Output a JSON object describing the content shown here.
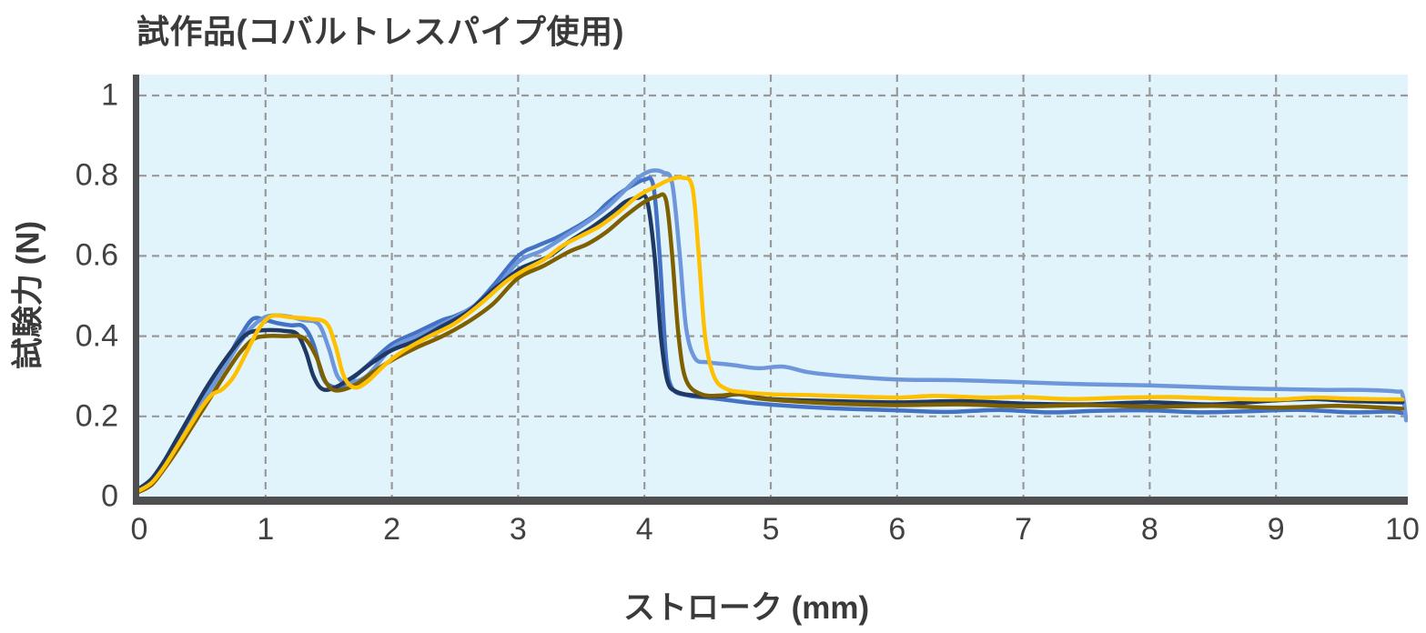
{
  "title": "試作品(コバルトレスパイプ使用)",
  "axes": {
    "y_label": "試験力 (N)",
    "x_label": "ストローク (mm)",
    "x_ticks": [
      {
        "value": 0,
        "label": "0"
      },
      {
        "value": 1,
        "label": "1"
      },
      {
        "value": 2,
        "label": "2"
      },
      {
        "value": 3,
        "label": "3"
      },
      {
        "value": 4,
        "label": "4"
      },
      {
        "value": 5,
        "label": "5"
      },
      {
        "value": 6,
        "label": "6"
      },
      {
        "value": 7,
        "label": "7"
      },
      {
        "value": 8,
        "label": "8"
      },
      {
        "value": 9,
        "label": "9"
      },
      {
        "value": 10,
        "label": "10"
      }
    ],
    "y_ticks": [
      {
        "value": 0,
        "label": "0"
      },
      {
        "value": 0.2,
        "label": "0.2"
      },
      {
        "value": 0.4,
        "label": "0.4"
      },
      {
        "value": 0.6,
        "label": "0.6"
      },
      {
        "value": 0.8,
        "label": "0.8"
      },
      {
        "value": 1,
        "label": "1"
      }
    ]
  },
  "style": {
    "plot_background": "#e2f4fb",
    "grid_color": "#999999",
    "axis_color": "#4f4f51",
    "text_color": "#3a3a3a"
  },
  "chart_data": {
    "type": "line",
    "title": "試作品(コバルトレスパイプ使用)",
    "xlabel": "ストローク (mm)",
    "ylabel": "試験力 (N)",
    "xlim": [
      0,
      10
    ],
    "ylim": [
      0,
      1.05
    ],
    "grid": "dashed-both-axes",
    "legend_position": "none",
    "description": "Five overlapping force-stroke test curves: rise to ~0.4-0.45 N plateau near 1 mm, dip to ~0.27 N at ~1.5 mm, rise to ~0.75-0.81 N peak near 4 mm, sharp drop to ~0.22-0.33 N, then flat tail to 10 mm",
    "series": [
      {
        "name": "run-medium-blue",
        "color": "#4472c4",
        "points": [
          [
            0,
            0.018
          ],
          [
            0.1,
            0.04
          ],
          [
            0.2,
            0.085
          ],
          [
            0.3,
            0.14
          ],
          [
            0.4,
            0.19
          ],
          [
            0.5,
            0.245
          ],
          [
            0.6,
            0.295
          ],
          [
            0.7,
            0.345
          ],
          [
            0.8,
            0.4
          ],
          [
            0.9,
            0.443
          ],
          [
            1.0,
            0.44
          ],
          [
            1.1,
            0.432
          ],
          [
            1.2,
            0.427
          ],
          [
            1.3,
            0.424
          ],
          [
            1.38,
            0.38
          ],
          [
            1.45,
            0.3
          ],
          [
            1.52,
            0.275
          ],
          [
            1.62,
            0.278
          ],
          [
            1.8,
            0.325
          ],
          [
            2.0,
            0.38
          ],
          [
            2.2,
            0.41
          ],
          [
            2.4,
            0.44
          ],
          [
            2.5,
            0.45
          ],
          [
            2.65,
            0.475
          ],
          [
            2.8,
            0.525
          ],
          [
            3.0,
            0.6
          ],
          [
            3.15,
            0.625
          ],
          [
            3.3,
            0.645
          ],
          [
            3.45,
            0.67
          ],
          [
            3.6,
            0.7
          ],
          [
            3.7,
            0.73
          ],
          [
            3.8,
            0.755
          ],
          [
            3.9,
            0.775
          ],
          [
            4.0,
            0.79
          ],
          [
            4.07,
            0.775
          ],
          [
            4.12,
            0.6
          ],
          [
            4.17,
            0.35
          ],
          [
            4.22,
            0.27
          ],
          [
            4.35,
            0.252
          ],
          [
            4.55,
            0.245
          ],
          [
            4.8,
            0.235
          ],
          [
            5.1,
            0.227
          ],
          [
            5.5,
            0.22
          ],
          [
            6.0,
            0.215
          ],
          [
            6.4,
            0.211
          ],
          [
            6.8,
            0.216
          ],
          [
            7.2,
            0.21
          ],
          [
            7.6,
            0.214
          ],
          [
            8.0,
            0.215
          ],
          [
            8.4,
            0.21
          ],
          [
            8.8,
            0.213
          ],
          [
            9.2,
            0.216
          ],
          [
            9.6,
            0.21
          ],
          [
            9.9,
            0.212
          ],
          [
            10,
            0.208
          ]
        ]
      },
      {
        "name": "run-light-blue",
        "color": "#6e96db",
        "points": [
          [
            0,
            0.015
          ],
          [
            0.1,
            0.035
          ],
          [
            0.2,
            0.075
          ],
          [
            0.3,
            0.125
          ],
          [
            0.4,
            0.18
          ],
          [
            0.5,
            0.235
          ],
          [
            0.6,
            0.285
          ],
          [
            0.7,
            0.335
          ],
          [
            0.8,
            0.385
          ],
          [
            0.9,
            0.425
          ],
          [
            1.0,
            0.448
          ],
          [
            1.1,
            0.452
          ],
          [
            1.2,
            0.448
          ],
          [
            1.3,
            0.44
          ],
          [
            1.42,
            0.43
          ],
          [
            1.5,
            0.37
          ],
          [
            1.57,
            0.3
          ],
          [
            1.65,
            0.285
          ],
          [
            1.8,
            0.3
          ],
          [
            2.0,
            0.37
          ],
          [
            2.2,
            0.4
          ],
          [
            2.4,
            0.43
          ],
          [
            2.6,
            0.465
          ],
          [
            2.8,
            0.51
          ],
          [
            3.0,
            0.585
          ],
          [
            3.2,
            0.615
          ],
          [
            3.4,
            0.655
          ],
          [
            3.55,
            0.685
          ],
          [
            3.7,
            0.72
          ],
          [
            3.85,
            0.765
          ],
          [
            3.95,
            0.795
          ],
          [
            4.05,
            0.812
          ],
          [
            4.15,
            0.808
          ],
          [
            4.22,
            0.78
          ],
          [
            4.28,
            0.6
          ],
          [
            4.33,
            0.42
          ],
          [
            4.4,
            0.345
          ],
          [
            4.5,
            0.335
          ],
          [
            4.7,
            0.328
          ],
          [
            4.9,
            0.32
          ],
          [
            5.1,
            0.324
          ],
          [
            5.3,
            0.31
          ],
          [
            5.6,
            0.3
          ],
          [
            6.0,
            0.292
          ],
          [
            6.5,
            0.29
          ],
          [
            7.0,
            0.285
          ],
          [
            7.5,
            0.28
          ],
          [
            8.0,
            0.277
          ],
          [
            8.5,
            0.272
          ],
          [
            9.0,
            0.268
          ],
          [
            9.4,
            0.266
          ],
          [
            9.7,
            0.266
          ],
          [
            9.95,
            0.262
          ],
          [
            10.0,
            0.255
          ],
          [
            10.03,
            0.19
          ]
        ]
      },
      {
        "name": "run-dark-navy",
        "color": "#1f3864",
        "points": [
          [
            0,
            0.02
          ],
          [
            0.1,
            0.045
          ],
          [
            0.2,
            0.09
          ],
          [
            0.3,
            0.145
          ],
          [
            0.4,
            0.2
          ],
          [
            0.5,
            0.255
          ],
          [
            0.6,
            0.305
          ],
          [
            0.7,
            0.35
          ],
          [
            0.8,
            0.39
          ],
          [
            0.88,
            0.41
          ],
          [
            1.0,
            0.415
          ],
          [
            1.15,
            0.413
          ],
          [
            1.25,
            0.405
          ],
          [
            1.32,
            0.36
          ],
          [
            1.38,
            0.3
          ],
          [
            1.45,
            0.268
          ],
          [
            1.55,
            0.272
          ],
          [
            1.7,
            0.3
          ],
          [
            1.85,
            0.335
          ],
          [
            2.0,
            0.365
          ],
          [
            2.2,
            0.39
          ],
          [
            2.4,
            0.425
          ],
          [
            2.6,
            0.46
          ],
          [
            2.8,
            0.515
          ],
          [
            3.0,
            0.565
          ],
          [
            3.1,
            0.58
          ],
          [
            3.25,
            0.6
          ],
          [
            3.4,
            0.635
          ],
          [
            3.5,
            0.655
          ],
          [
            3.6,
            0.675
          ],
          [
            3.75,
            0.71
          ],
          [
            3.85,
            0.735
          ],
          [
            3.95,
            0.745
          ],
          [
            4.02,
            0.738
          ],
          [
            4.08,
            0.6
          ],
          [
            4.13,
            0.4
          ],
          [
            4.18,
            0.29
          ],
          [
            4.25,
            0.262
          ],
          [
            4.4,
            0.252
          ],
          [
            4.6,
            0.25
          ],
          [
            4.75,
            0.255
          ],
          [
            5.0,
            0.243
          ],
          [
            5.5,
            0.238
          ],
          [
            6.0,
            0.235
          ],
          [
            6.5,
            0.238
          ],
          [
            7.0,
            0.232
          ],
          [
            7.5,
            0.23
          ],
          [
            8.0,
            0.235
          ],
          [
            8.5,
            0.23
          ],
          [
            9.0,
            0.24
          ],
          [
            9.3,
            0.243
          ],
          [
            9.6,
            0.238
          ],
          [
            10,
            0.235
          ]
        ]
      },
      {
        "name": "run-dark-olive",
        "color": "#7f6000",
        "points": [
          [
            0,
            0.012
          ],
          [
            0.1,
            0.03
          ],
          [
            0.2,
            0.07
          ],
          [
            0.3,
            0.115
          ],
          [
            0.4,
            0.165
          ],
          [
            0.5,
            0.215
          ],
          [
            0.6,
            0.265
          ],
          [
            0.7,
            0.315
          ],
          [
            0.8,
            0.36
          ],
          [
            0.9,
            0.392
          ],
          [
            1.0,
            0.4
          ],
          [
            1.15,
            0.4
          ],
          [
            1.3,
            0.396
          ],
          [
            1.4,
            0.35
          ],
          [
            1.47,
            0.29
          ],
          [
            1.55,
            0.265
          ],
          [
            1.7,
            0.277
          ],
          [
            1.85,
            0.31
          ],
          [
            2.0,
            0.34
          ],
          [
            2.2,
            0.372
          ],
          [
            2.4,
            0.4
          ],
          [
            2.6,
            0.435
          ],
          [
            2.8,
            0.48
          ],
          [
            3.0,
            0.545
          ],
          [
            3.2,
            0.575
          ],
          [
            3.4,
            0.61
          ],
          [
            3.55,
            0.63
          ],
          [
            3.7,
            0.66
          ],
          [
            3.85,
            0.7
          ],
          [
            4.0,
            0.735
          ],
          [
            4.1,
            0.748
          ],
          [
            4.17,
            0.74
          ],
          [
            4.22,
            0.6
          ],
          [
            4.27,
            0.4
          ],
          [
            4.33,
            0.29
          ],
          [
            4.45,
            0.255
          ],
          [
            4.6,
            0.252
          ],
          [
            4.75,
            0.256
          ],
          [
            4.9,
            0.245
          ],
          [
            5.2,
            0.237
          ],
          [
            5.5,
            0.232
          ],
          [
            6.0,
            0.228
          ],
          [
            6.5,
            0.23
          ],
          [
            7.0,
            0.225
          ],
          [
            7.5,
            0.228
          ],
          [
            8.0,
            0.224
          ],
          [
            8.5,
            0.226
          ],
          [
            9.0,
            0.222
          ],
          [
            9.5,
            0.226
          ],
          [
            10,
            0.219
          ]
        ]
      },
      {
        "name": "run-yellow",
        "color": "#ffc000",
        "points": [
          [
            0,
            0.015
          ],
          [
            0.1,
            0.035
          ],
          [
            0.2,
            0.075
          ],
          [
            0.3,
            0.125
          ],
          [
            0.4,
            0.175
          ],
          [
            0.5,
            0.225
          ],
          [
            0.58,
            0.255
          ],
          [
            0.66,
            0.268
          ],
          [
            0.75,
            0.3
          ],
          [
            0.85,
            0.36
          ],
          [
            0.95,
            0.42
          ],
          [
            1.05,
            0.45
          ],
          [
            1.2,
            0.447
          ],
          [
            1.35,
            0.443
          ],
          [
            1.48,
            0.433
          ],
          [
            1.55,
            0.38
          ],
          [
            1.62,
            0.3
          ],
          [
            1.7,
            0.272
          ],
          [
            1.8,
            0.285
          ],
          [
            1.95,
            0.33
          ],
          [
            2.1,
            0.365
          ],
          [
            2.3,
            0.4
          ],
          [
            2.5,
            0.432
          ],
          [
            2.7,
            0.48
          ],
          [
            2.9,
            0.535
          ],
          [
            3.05,
            0.565
          ],
          [
            3.2,
            0.59
          ],
          [
            3.35,
            0.625
          ],
          [
            3.5,
            0.65
          ],
          [
            3.65,
            0.675
          ],
          [
            3.8,
            0.71
          ],
          [
            3.95,
            0.75
          ],
          [
            4.1,
            0.775
          ],
          [
            4.2,
            0.79
          ],
          [
            4.3,
            0.795
          ],
          [
            4.38,
            0.77
          ],
          [
            4.43,
            0.6
          ],
          [
            4.48,
            0.4
          ],
          [
            4.55,
            0.3
          ],
          [
            4.65,
            0.268
          ],
          [
            4.8,
            0.26
          ],
          [
            5.0,
            0.255
          ],
          [
            5.3,
            0.253
          ],
          [
            5.6,
            0.25
          ],
          [
            6.0,
            0.247
          ],
          [
            6.3,
            0.251
          ],
          [
            6.7,
            0.247
          ],
          [
            7.0,
            0.248
          ],
          [
            7.4,
            0.243
          ],
          [
            7.8,
            0.247
          ],
          [
            8.2,
            0.248
          ],
          [
            8.6,
            0.244
          ],
          [
            9.0,
            0.242
          ],
          [
            9.3,
            0.247
          ],
          [
            9.6,
            0.244
          ],
          [
            10,
            0.242
          ]
        ]
      }
    ]
  }
}
